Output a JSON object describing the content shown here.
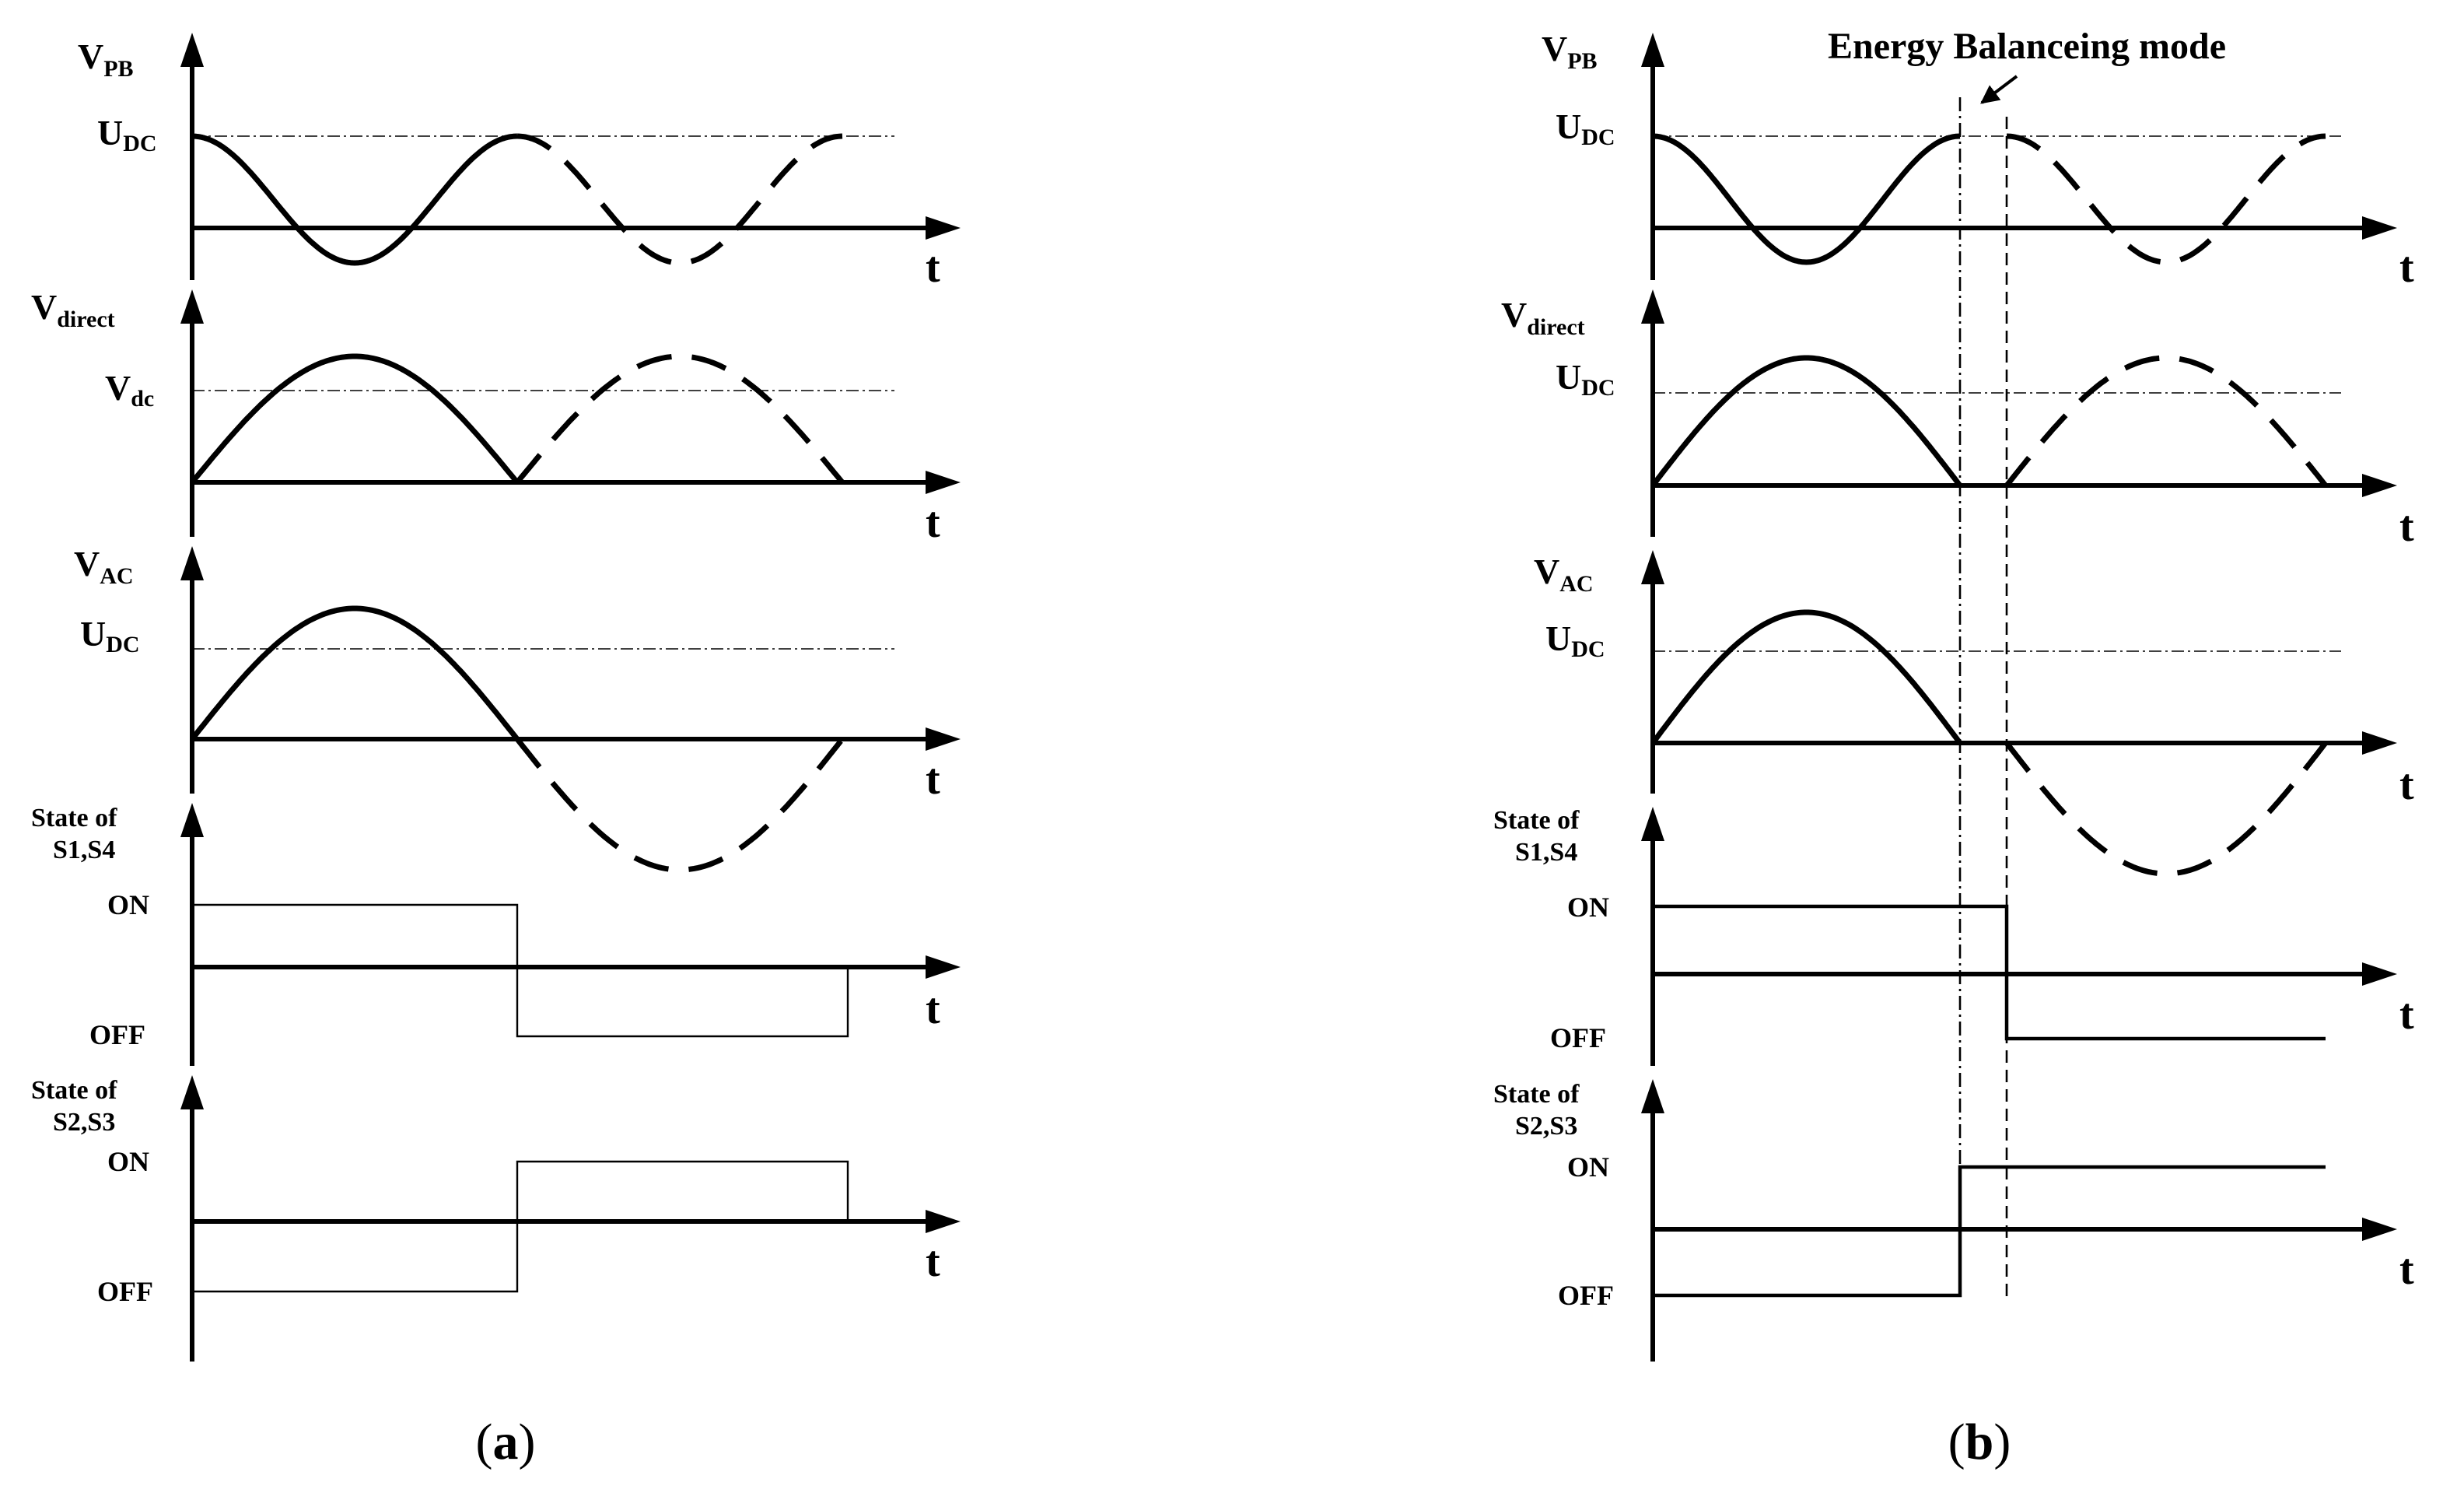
{
  "labels": {
    "a": {
      "vpb_main": "V",
      "vpb_sub": "PB",
      "vpb_ref_main": "U",
      "vpb_ref_sub": "DC",
      "vdirect_main": "V",
      "vdirect_sub": "direct",
      "vdirect_ref_main": "V",
      "vdirect_ref_sub": "dc",
      "vac_main": "V",
      "vac_sub": "AC",
      "vac_ref_main": "U",
      "vac_ref_sub": "DC",
      "s14_line1": "State of",
      "s14_line2": "S1,S4",
      "s23_line1": "State of",
      "s23_line2": "S2,S3",
      "on": "ON",
      "off": "OFF",
      "t": "t",
      "caption_open": "(",
      "caption_letter": "a",
      "caption_close": ")"
    },
    "b": {
      "vpb_main": "V",
      "vpb_sub": "PB",
      "vpb_ref_main": "U",
      "vpb_ref_sub": "DC",
      "vdirect_main": "V",
      "vdirect_sub": "direct",
      "vdirect_ref_main": "U",
      "vdirect_ref_sub": "DC",
      "vac_main": "V",
      "vac_sub": "AC",
      "vac_ref_main": "U",
      "vac_ref_sub": "DC",
      "s14_line1": "State of",
      "s14_line2": "S1,S4",
      "s23_line1": "State of",
      "s23_line2": "S2,S3",
      "on": "ON",
      "off": "OFF",
      "t": "t",
      "mode_label": "Energy Balanceing mode",
      "caption_open": "(",
      "caption_letter": "b",
      "caption_close": ")"
    }
  }
}
